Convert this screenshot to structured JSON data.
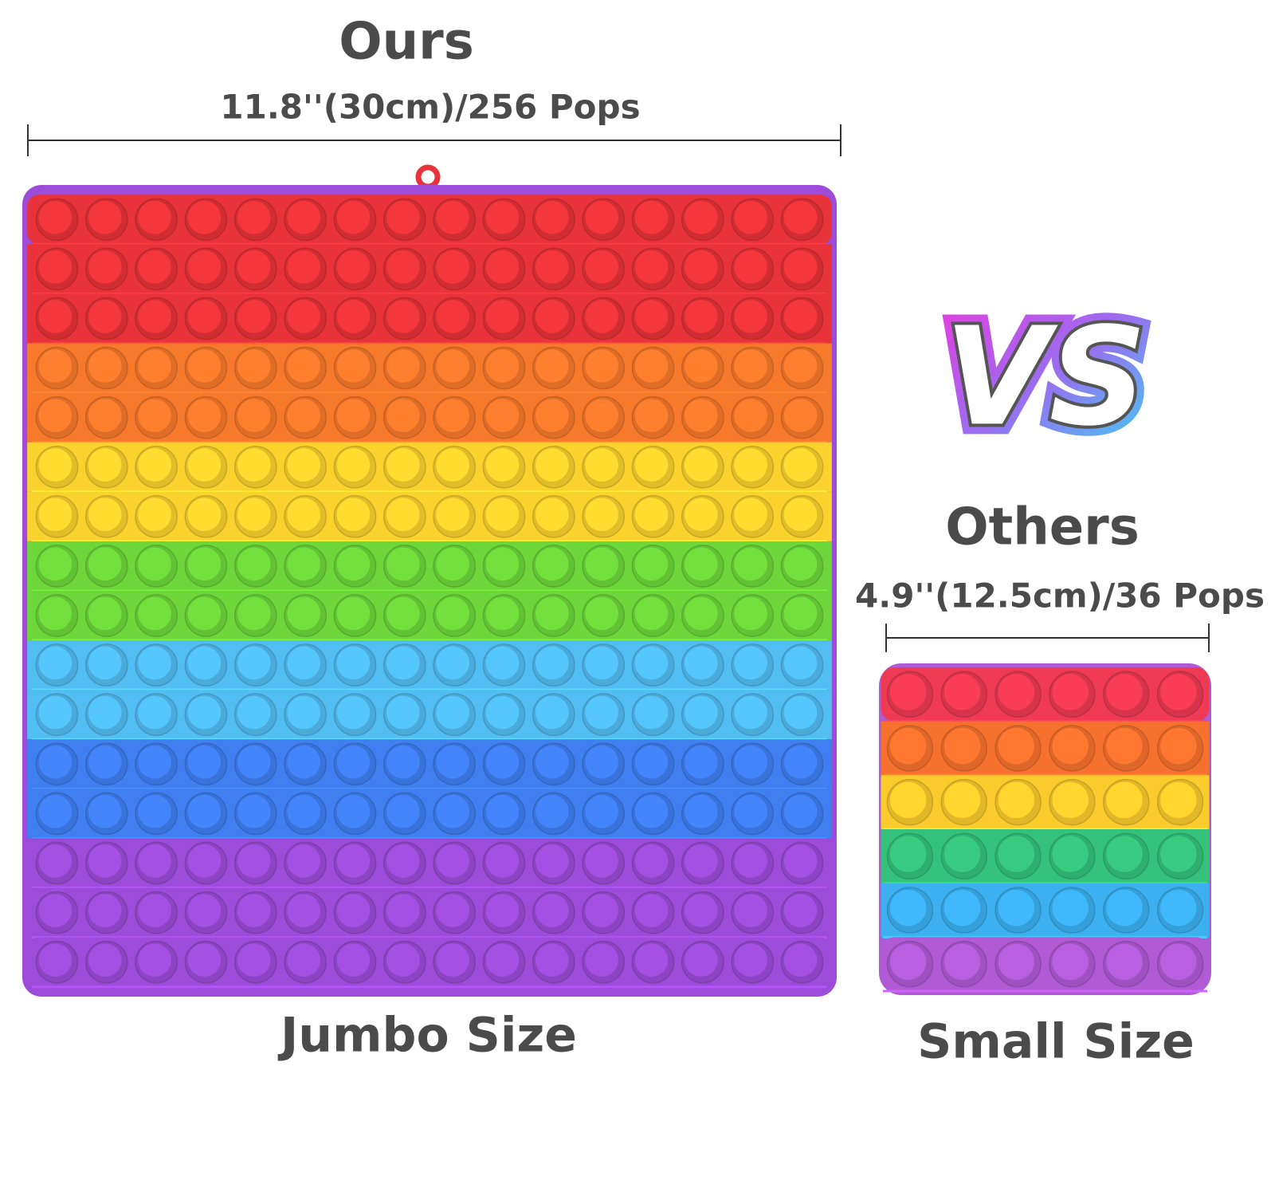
{
  "ours": {
    "title": "Ours",
    "dimension": "11.8''(30cm)/256 Pops",
    "caption": "Jumbo Size"
  },
  "versus": "VS",
  "others": {
    "title": "Others",
    "dimension": "4.9''(12.5cm)/36 Pops",
    "caption": "Small Size"
  }
}
